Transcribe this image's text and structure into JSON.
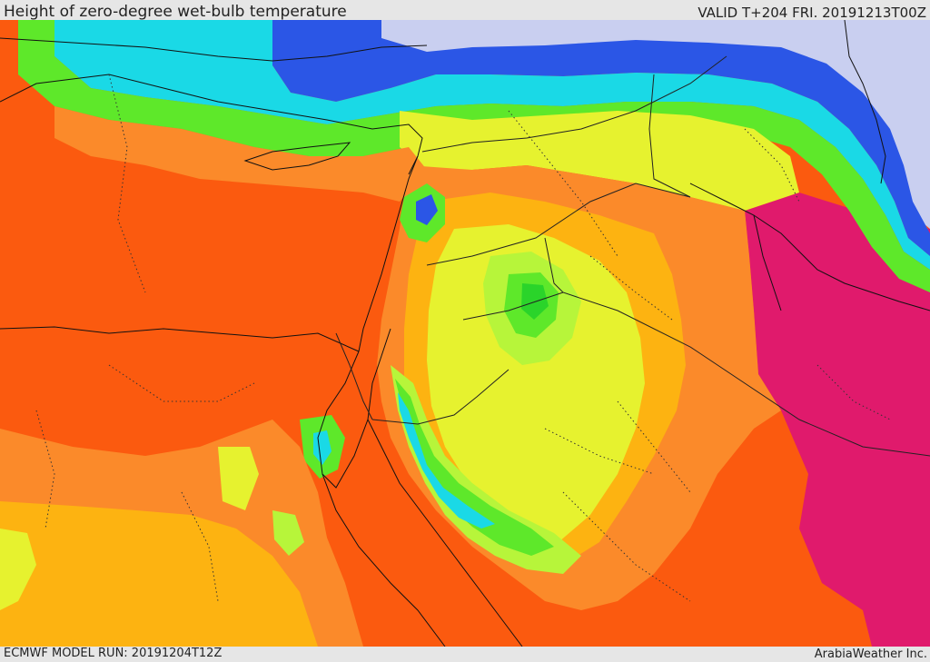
{
  "header": {
    "title": "Height of zero-degree wet-bulb temperature",
    "valid_time": "VALID T+204 FRI. 20191213T00Z"
  },
  "footer": {
    "model_run": "ECMWF MODEL RUN: 20191204T12Z",
    "credit": "ArabiaWeather Inc."
  },
  "palette": {
    "magenta": "#e01a6c",
    "red_orange": "#fb5a0f",
    "orange": "#fb8a2a",
    "amber": "#fdb311",
    "yellow": "#e6f22f",
    "light_green": "#b7f53a",
    "green": "#5ee82a",
    "bright_green": "#2ad42a",
    "cyan": "#1ad9e6",
    "blue": "#2b56e6",
    "lavender": "#c9cff0",
    "coastline": "#111111",
    "border": "#222222"
  }
}
